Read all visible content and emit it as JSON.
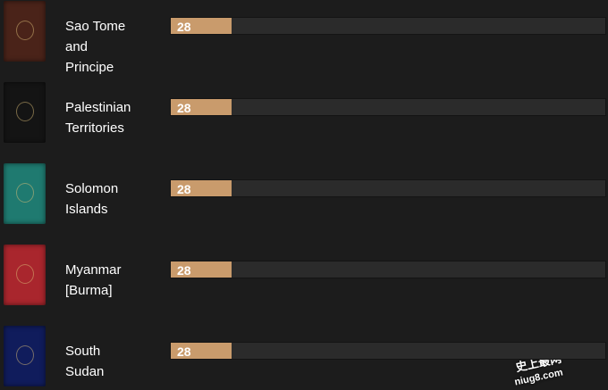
{
  "chart_data": {
    "type": "bar",
    "categories": [
      "Sao Tome and Principe",
      "Palestinian Territories",
      "Solomon Islands",
      "Myanmar [Burma]",
      "South Sudan"
    ],
    "values": [
      28,
      28,
      28,
      28,
      28
    ],
    "xlim": [
      0,
      200
    ],
    "color": "#c99b6c",
    "passport_colors": [
      "#4a2319",
      "#141414",
      "#1f7a70",
      "#a9262d",
      "#101c5c"
    ]
  },
  "watermark": [
    "史上最网",
    "niug8.com"
  ]
}
